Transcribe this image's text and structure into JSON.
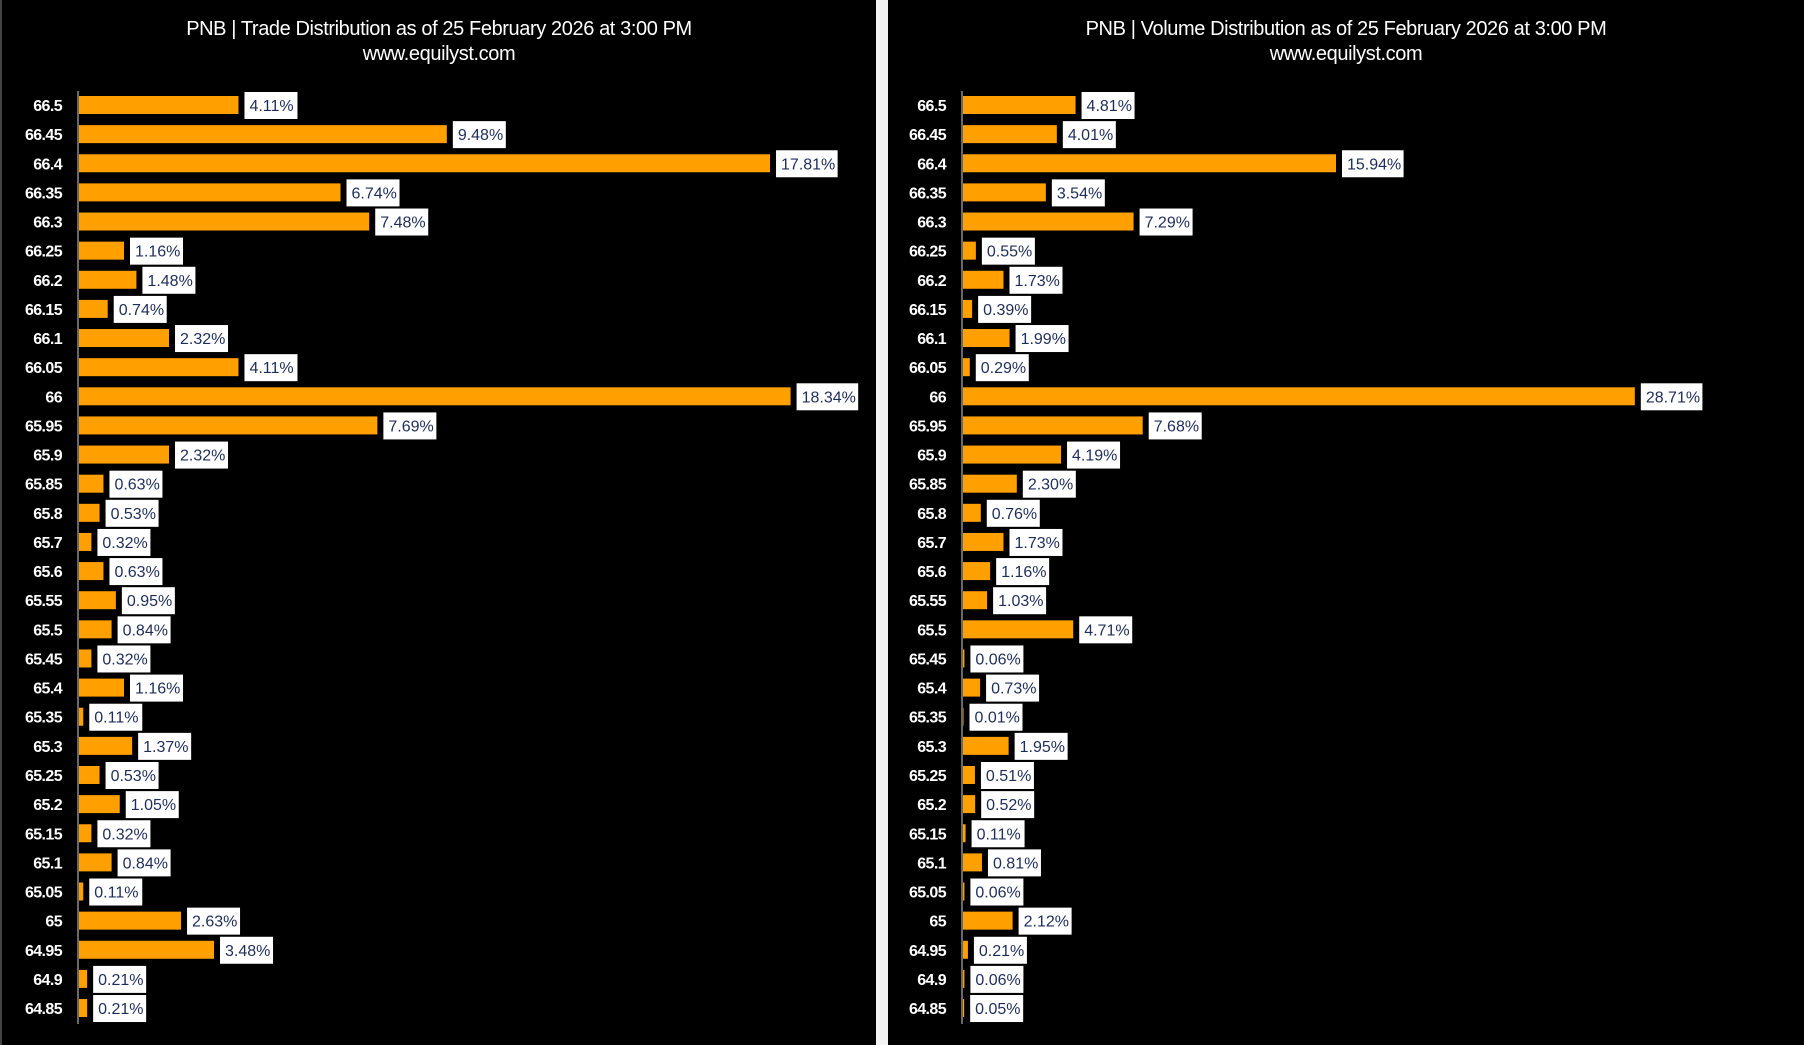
{
  "chart_data": [
    {
      "type": "bar",
      "orientation": "horizontal",
      "title": "PNB | Trade Distribution as of 25 February 2026 at 3:00 PM",
      "subtitle": "www.equilyst.com",
      "categories": [
        "66.5",
        "66.45",
        "66.4",
        "66.35",
        "66.3",
        "66.25",
        "66.2",
        "66.15",
        "66.1",
        "66.05",
        "66",
        "65.95",
        "65.9",
        "65.85",
        "65.8",
        "65.7",
        "65.6",
        "65.55",
        "65.5",
        "65.45",
        "65.4",
        "65.35",
        "65.3",
        "65.25",
        "65.2",
        "65.15",
        "65.1",
        "65.05",
        "65",
        "64.95",
        "64.9",
        "64.85"
      ],
      "values": [
        4.11,
        9.48,
        17.81,
        6.74,
        7.48,
        1.16,
        1.48,
        0.74,
        2.32,
        4.11,
        18.34,
        7.69,
        2.32,
        0.63,
        0.53,
        0.32,
        0.63,
        0.95,
        0.84,
        0.32,
        1.16,
        0.11,
        1.37,
        0.53,
        1.05,
        0.32,
        0.84,
        0.11,
        2.63,
        3.48,
        0.21,
        0.21
      ],
      "data_labels": [
        "4.11%",
        "9.48%",
        "17.81%",
        "6.74%",
        "7.48%",
        "1.16%",
        "1.48%",
        "0.74%",
        "2.32%",
        "4.11%",
        "18.34%",
        "7.69%",
        "2.32%",
        "0.63%",
        "0.53%",
        "0.32%",
        "0.63%",
        "0.95%",
        "0.84%",
        "0.32%",
        "1.16%",
        "0.11%",
        "1.37%",
        "0.53%",
        "1.05%",
        "0.32%",
        "0.84%",
        "0.11%",
        "2.63%",
        "3.48%",
        "0.21%",
        "0.21%"
      ],
      "xlabel": "",
      "ylabel": "",
      "xlim": [
        0,
        19
      ],
      "grid": false,
      "bar_color": "#ffa000",
      "background": "#000000"
    },
    {
      "type": "bar",
      "orientation": "horizontal",
      "title": "PNB | Volume Distribution as of 25 February 2026 at 3:00 PM",
      "subtitle": "www.equilyst.com",
      "categories": [
        "66.5",
        "66.45",
        "66.4",
        "66.35",
        "66.3",
        "66.25",
        "66.2",
        "66.15",
        "66.1",
        "66.05",
        "66",
        "65.95",
        "65.9",
        "65.85",
        "65.8",
        "65.7",
        "65.6",
        "65.55",
        "65.5",
        "65.45",
        "65.4",
        "65.35",
        "65.3",
        "65.25",
        "65.2",
        "65.15",
        "65.1",
        "65.05",
        "65",
        "64.95",
        "64.9",
        "64.85"
      ],
      "values": [
        4.81,
        4.01,
        15.94,
        3.54,
        7.29,
        0.55,
        1.73,
        0.39,
        1.99,
        0.29,
        28.71,
        7.68,
        4.19,
        2.3,
        0.76,
        1.73,
        1.16,
        1.03,
        4.71,
        0.06,
        0.73,
        0.01,
        1.95,
        0.51,
        0.52,
        0.11,
        0.81,
        0.06,
        2.12,
        0.21,
        0.06,
        0.05
      ],
      "data_labels": [
        "4.81%",
        "4.01%",
        "15.94%",
        "3.54%",
        "7.29%",
        "0.55%",
        "1.73%",
        "0.39%",
        "1.99%",
        "0.29%",
        "28.71%",
        "7.68%",
        "4.19%",
        "2.30%",
        "0.76%",
        "1.73%",
        "1.16%",
        "1.03%",
        "4.71%",
        "0.06%",
        "0.73%",
        "0.01%",
        "1.95%",
        "0.51%",
        "0.52%",
        "0.11%",
        "0.81%",
        "0.06%",
        "2.12%",
        "0.21%",
        "0.06%",
        "0.05%"
      ],
      "xlabel": "",
      "ylabel": "",
      "xlim": [
        0,
        30
      ],
      "grid": false,
      "bar_color": "#ffa000",
      "background": "#000000"
    }
  ]
}
